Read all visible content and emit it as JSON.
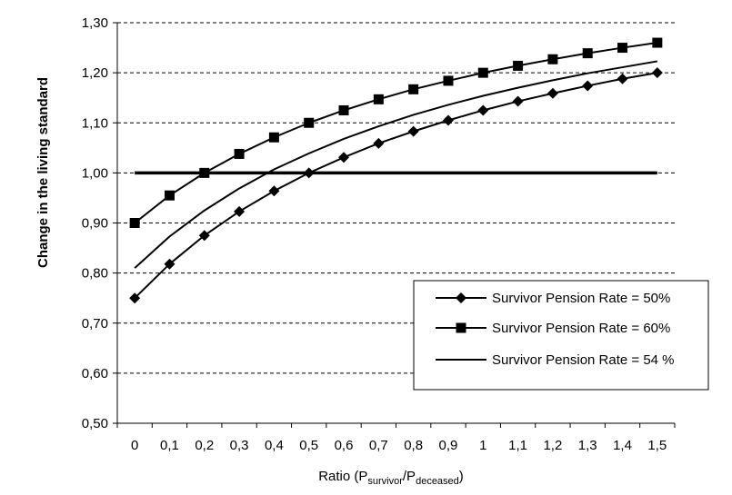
{
  "chart_data": {
    "type": "line",
    "title": "",
    "xlabel_parts": {
      "prefix": "Ratio (P",
      "sub1": "survivor",
      "mid": "/P",
      "sub2": "deceased",
      "suffix": ")"
    },
    "ylabel": "Change in the living standard",
    "ylim": [
      0.5,
      1.3
    ],
    "yticks": [
      "0,50",
      "0,60",
      "0,70",
      "0,80",
      "0,90",
      "1,00",
      "1,10",
      "1,20",
      "1,30"
    ],
    "categories": [
      "0",
      "0,1",
      "0,2",
      "0,3",
      "0,4",
      "0,5",
      "0,6",
      "0,7",
      "0,8",
      "0,9",
      "1",
      "1,1",
      "1,2",
      "1,3",
      "1,4",
      "1,5"
    ],
    "grid": "horizontal-dashed",
    "legend_position": "bottom-right",
    "series": [
      {
        "name": "Survivor Pension Rate = 50%",
        "marker": "diamond",
        "values": [
          0.75,
          0.818,
          0.875,
          0.923,
          0.964,
          1.0,
          1.031,
          1.059,
          1.083,
          1.105,
          1.125,
          1.143,
          1.159,
          1.174,
          1.188,
          1.2
        ]
      },
      {
        "name": "Survivor Pension Rate = 60%",
        "marker": "square",
        "values": [
          0.9,
          0.955,
          1.0,
          1.038,
          1.071,
          1.1,
          1.125,
          1.147,
          1.167,
          1.184,
          1.2,
          1.214,
          1.227,
          1.239,
          1.25,
          1.26
        ]
      },
      {
        "name": "Survivor Pension Rate = 54 %",
        "marker": "none",
        "values": [
          0.81,
          0.873,
          0.925,
          0.969,
          1.007,
          1.039,
          1.068,
          1.093,
          1.116,
          1.136,
          1.154,
          1.17,
          1.185,
          1.199,
          1.211,
          1.223
        ]
      },
      {
        "name": "",
        "marker": "none",
        "style": "thick",
        "values": [
          1.0,
          1.0,
          1.0,
          1.0,
          1.0,
          1.0,
          1.0,
          1.0,
          1.0,
          1.0,
          1.0,
          1.0,
          1.0,
          1.0,
          1.0,
          1.0
        ]
      }
    ]
  }
}
